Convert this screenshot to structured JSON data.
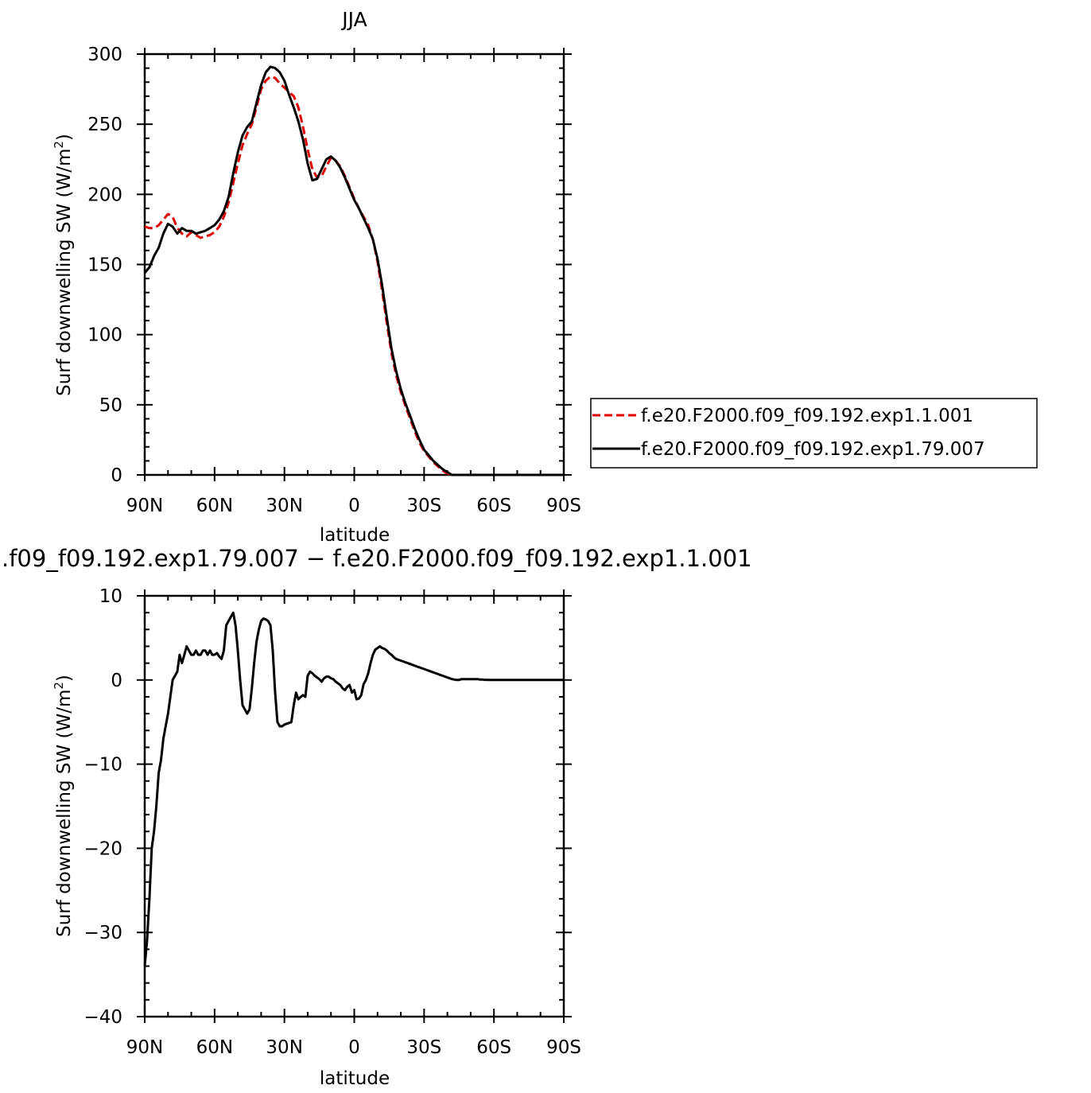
{
  "chart_data": [
    {
      "type": "line",
      "title": "JJA",
      "xlabel": "latitude",
      "ylabel": "Surf downwelling SW (W/m",
      "ylabel_sup": "2",
      "ylabel_close": ")",
      "xlim": [
        90,
        -90
      ],
      "ylim": [
        0,
        300
      ],
      "x_ticks": [
        90,
        60,
        30,
        0,
        -30,
        -60,
        -90
      ],
      "x_tick_labels": [
        "90N",
        "60N",
        "30N",
        "0",
        "30S",
        "60S",
        "90S"
      ],
      "y_ticks": [
        0,
        50,
        100,
        150,
        200,
        250,
        300
      ],
      "y_tick_labels": [
        "0",
        "50",
        "100",
        "150",
        "200",
        "250",
        "300"
      ],
      "legend_position": "right, outside plot",
      "series": [
        {
          "name": "f.e20.F2000.f09_f09.192.exp1.1.001",
          "color": "#e00000",
          "dash": true,
          "x": [
            90,
            88,
            86,
            84,
            82,
            80,
            78,
            76,
            74,
            72,
            70,
            68,
            66,
            64,
            62,
            60,
            58,
            56,
            54,
            52,
            50,
            48,
            46,
            44,
            42,
            40,
            38,
            36,
            34,
            32,
            30,
            28,
            26,
            24,
            22,
            20,
            18,
            16,
            14,
            12,
            10,
            8,
            6,
            4,
            2,
            0,
            -2,
            -4,
            -6,
            -8,
            -10,
            -12,
            -14,
            -16,
            -18,
            -20,
            -22,
            -24,
            -26,
            -28,
            -30,
            -32,
            -34,
            -36,
            -38,
            -40,
            -42,
            -44,
            -46,
            -48,
            -50,
            -52,
            -54,
            -56,
            -58,
            -60,
            -62,
            -64,
            -66,
            -68,
            -70,
            -72,
            -74,
            -76,
            -78,
            -80,
            -82,
            -84,
            -86,
            -88,
            -90
          ],
          "values": [
            177,
            176,
            176,
            178,
            182,
            186,
            184,
            176,
            172,
            170,
            173,
            171,
            169,
            170,
            171,
            173,
            177,
            184,
            194,
            208,
            222,
            235,
            243,
            250,
            262,
            275,
            281,
            284,
            283,
            279,
            276,
            273,
            270,
            262,
            248,
            232,
            218,
            212,
            213,
            220,
            226,
            224,
            220,
            213,
            205,
            197,
            190,
            184,
            178,
            168,
            152,
            131,
            108,
            87,
            71,
            59,
            49,
            40,
            31,
            23,
            17,
            13,
            9,
            6,
            3,
            1,
            0,
            0,
            0,
            0,
            0,
            0,
            0,
            0,
            0,
            0,
            0,
            0,
            0,
            0,
            0,
            0,
            0,
            0,
            0,
            0,
            0,
            0,
            0,
            0,
            0
          ]
        },
        {
          "name": "f.e20.F2000.f09_f09.192.exp1.79.007",
          "color": "#000000",
          "dash": false,
          "x": [
            90,
            88,
            86,
            84,
            82,
            80,
            78,
            76,
            74,
            72,
            70,
            68,
            66,
            64,
            62,
            60,
            58,
            56,
            54,
            52,
            50,
            48,
            46,
            44,
            42,
            40,
            38,
            36,
            34,
            32,
            30,
            28,
            26,
            24,
            22,
            20,
            18,
            16,
            14,
            12,
            10,
            8,
            6,
            4,
            2,
            0,
            -2,
            -4,
            -6,
            -8,
            -10,
            -12,
            -14,
            -16,
            -18,
            -20,
            -22,
            -24,
            -26,
            -28,
            -30,
            -32,
            -34,
            -36,
            -38,
            -40,
            -42,
            -44,
            -46,
            -48,
            -50,
            -52,
            -54,
            -56,
            -58,
            -60,
            -62,
            -64,
            -66,
            -68,
            -70,
            -72,
            -74,
            -76,
            -78,
            -80,
            -82,
            -84,
            -86,
            -88,
            -90
          ],
          "values": [
            144,
            148,
            156,
            162,
            172,
            179,
            177,
            172,
            176,
            174,
            174,
            172,
            173,
            174,
            176,
            178,
            182,
            188,
            198,
            215,
            230,
            242,
            248,
            252,
            265,
            278,
            287,
            291,
            290,
            287,
            281,
            271,
            262,
            252,
            239,
            222,
            210,
            211,
            218,
            225,
            227,
            224,
            219,
            212,
            204,
            196,
            190,
            183,
            176,
            168,
            154,
            135,
            112,
            90,
            74,
            61,
            51,
            42,
            33,
            25,
            18,
            14,
            10,
            7,
            4,
            2,
            0,
            0,
            0,
            0,
            0,
            0,
            0,
            0,
            0,
            0,
            0,
            0,
            0,
            0,
            0,
            0,
            0,
            0,
            0,
            0,
            0,
            0,
            0,
            0,
            0
          ]
        }
      ]
    },
    {
      "type": "line",
      "title": ".f09_f09.192.exp1.79.007 − f.e20.F2000.f09_f09.192.exp1.1.001",
      "xlabel": "latitude",
      "ylabel": "Surf downwelling SW (W/m",
      "ylabel_sup": "2",
      "ylabel_close": ")",
      "xlim": [
        90,
        -90
      ],
      "ylim": [
        -40,
        10
      ],
      "x_ticks": [
        90,
        60,
        30,
        0,
        -30,
        -60,
        -90
      ],
      "x_tick_labels": [
        "90N",
        "60N",
        "30N",
        "0",
        "30S",
        "60S",
        "90S"
      ],
      "y_ticks": [
        -40,
        -30,
        -20,
        -10,
        0,
        10
      ],
      "y_tick_labels": [
        "−40",
        "−30",
        "−20",
        "−10",
        "0",
        "10"
      ],
      "series": [
        {
          "color": "#000000",
          "dash": false,
          "x": [
            90,
            89,
            88,
            87,
            86,
            85,
            84,
            83,
            82,
            81,
            80,
            79,
            78,
            77,
            76,
            75,
            74,
            73,
            72,
            71,
            70,
            69,
            68,
            67,
            66,
            65,
            64,
            63,
            62,
            61,
            60,
            59,
            58,
            57,
            56,
            55,
            54,
            53,
            52,
            51,
            50,
            49,
            48,
            47,
            46,
            45,
            44,
            43,
            42,
            41,
            40,
            39,
            38,
            37,
            36,
            35,
            34,
            33,
            32,
            31,
            30,
            29,
            28,
            27,
            26,
            25,
            24,
            23,
            22,
            21,
            20,
            19,
            18,
            17,
            16,
            15,
            14,
            13,
            12,
            11,
            10,
            9,
            8,
            7,
            6,
            5,
            4,
            3,
            2,
            1,
            0,
            -1,
            -2,
            -3,
            -4,
            -5,
            -6,
            -7,
            -8,
            -9,
            -10,
            -11,
            -12,
            -13,
            -14,
            -15,
            -16,
            -17,
            -18,
            -19,
            -20,
            -21,
            -22,
            -23,
            -24,
            -25,
            -26,
            -27,
            -28,
            -29,
            -30,
            -31,
            -32,
            -33,
            -34,
            -35,
            -36,
            -37,
            -38,
            -39,
            -40,
            -41,
            -42,
            -43,
            -44,
            -45,
            -46,
            -47,
            -48,
            -49,
            -50,
            -51,
            -52,
            -53,
            -54,
            -55,
            -56,
            -57,
            -58,
            -59,
            -60,
            -62,
            -64,
            -66,
            -68,
            -70,
            -72,
            -74,
            -76,
            -78,
            -80,
            -82,
            -84,
            -86,
            -88,
            -90
          ],
          "values": [
            -34,
            -31,
            -26,
            -20,
            -18,
            -15,
            -11,
            -9.5,
            -7,
            -5.5,
            -4,
            -2,
            0,
            0.5,
            1,
            3,
            2,
            3,
            4,
            3.5,
            3,
            3,
            3.5,
            3,
            3,
            3.5,
            3.5,
            3,
            3.5,
            3.0,
            3,
            3.2,
            2.8,
            2.5,
            3.5,
            6.5,
            7,
            7.5,
            8,
            6.5,
            3.5,
            0,
            -3,
            -3.5,
            -4,
            -3.5,
            -1,
            2,
            4.5,
            6,
            7,
            7.3,
            7.2,
            7,
            6.5,
            3.5,
            -1.5,
            -5,
            -5.5,
            -5.5,
            -5.3,
            -5.2,
            -5.1,
            -5.0,
            -3,
            -1.5,
            -2.3,
            -2,
            -1.8,
            -2,
            0.5,
            1,
            0.8,
            0.5,
            0.3,
            0.1,
            -0.2,
            0.2,
            0.4,
            0.4,
            0.2,
            0.1,
            -0.2,
            -0.4,
            -0.6,
            -1,
            -1.2,
            -0.8,
            -0.6,
            -1.5,
            -1.2,
            -2.3,
            -2.2,
            -1.8,
            -0.5,
            0,
            0.8,
            2,
            3,
            3.6,
            3.8,
            4,
            3.8,
            3.7,
            3.5,
            3.2,
            3,
            2.7,
            2.5,
            2.4,
            2.3,
            2.2,
            2.1,
            2.0,
            1.9,
            1.8,
            1.7,
            1.6,
            1.5,
            1.4,
            1.3,
            1.2,
            1.1,
            1.0,
            0.9,
            0.8,
            0.7,
            0.6,
            0.5,
            0.4,
            0.3,
            0.2,
            0.1,
            0.05,
            0.0,
            0.0,
            0.1,
            0.1,
            0.1,
            0.1,
            0.1,
            0.1,
            0.1,
            0.1,
            0.05,
            0.05,
            0.02,
            0.02,
            0.01,
            0.01,
            0.0,
            0.0,
            0.0,
            0.0,
            0.0,
            0.0,
            0.0,
            0.0,
            0.0,
            0.0,
            0.0,
            0.0,
            0.0,
            0.0,
            0.0,
            0.0
          ]
        }
      ]
    }
  ]
}
